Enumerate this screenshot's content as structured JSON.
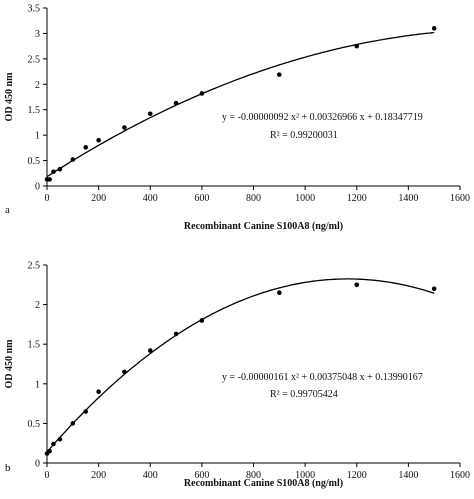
{
  "chart_data": [
    {
      "panel": "a",
      "type": "scatter",
      "xlabel": "Recombinant Canine S100A8 (ng/ml)",
      "ylabel": "OD 450 nm",
      "xlim": [
        0,
        1600
      ],
      "ylim": [
        0,
        3.5
      ],
      "xticks": [
        "0",
        "200",
        "400",
        "600",
        "800",
        "1000",
        "1200",
        "1400",
        "1600"
      ],
      "yticks": [
        "0",
        "0.5",
        "1",
        "1.5",
        "2",
        "2.5",
        "3",
        "3.5"
      ],
      "equation": "y = -0.00000092 x² + 0.00326966 x + 0.18347719",
      "r2_label": "R² = 0.99200031",
      "fit": {
        "a": -9.2e-07,
        "b": 0.00326966,
        "c": 0.18347719
      },
      "points": [
        {
          "x": 0,
          "y": 0.13
        },
        {
          "x": 10,
          "y": 0.13
        },
        {
          "x": 25,
          "y": 0.28
        },
        {
          "x": 50,
          "y": 0.33
        },
        {
          "x": 100,
          "y": 0.52
        },
        {
          "x": 150,
          "y": 0.76
        },
        {
          "x": 200,
          "y": 0.9
        },
        {
          "x": 300,
          "y": 1.15
        },
        {
          "x": 400,
          "y": 1.42
        },
        {
          "x": 500,
          "y": 1.63
        },
        {
          "x": 600,
          "y": 1.82
        },
        {
          "x": 900,
          "y": 2.19
        },
        {
          "x": 1200,
          "y": 2.75
        },
        {
          "x": 1500,
          "y": 3.1
        }
      ],
      "grid": false,
      "legend": "none"
    },
    {
      "panel": "b",
      "type": "scatter",
      "xlabel": "Recombinant Canine S100A8 (ng/ml)",
      "ylabel": "OD 450 nm",
      "xlim": [
        0,
        1600
      ],
      "ylim": [
        0,
        2.5
      ],
      "xticks": [
        "0",
        "200",
        "400",
        "600",
        "800",
        "1000",
        "1200",
        "1400",
        "1600"
      ],
      "yticks": [
        "0",
        "0.5",
        "1",
        "1.5",
        "2",
        "2.5"
      ],
      "equation": "y = -0.00000161 x² + 0.00375048 x + 0.13990167",
      "r2_label": "R² = 0.99705424",
      "fit": {
        "a": -1.61e-06,
        "b": 0.00375048,
        "c": 0.13990167
      },
      "points": [
        {
          "x": 0,
          "y": 0.12
        },
        {
          "x": 10,
          "y": 0.15
        },
        {
          "x": 25,
          "y": 0.24
        },
        {
          "x": 50,
          "y": 0.3
        },
        {
          "x": 100,
          "y": 0.5
        },
        {
          "x": 150,
          "y": 0.65
        },
        {
          "x": 200,
          "y": 0.9
        },
        {
          "x": 300,
          "y": 1.15
        },
        {
          "x": 400,
          "y": 1.42
        },
        {
          "x": 500,
          "y": 1.63
        },
        {
          "x": 600,
          "y": 1.8
        },
        {
          "x": 900,
          "y": 2.15
        },
        {
          "x": 1200,
          "y": 2.25
        },
        {
          "x": 1500,
          "y": 2.2
        }
      ],
      "grid": false,
      "legend": "none"
    }
  ]
}
